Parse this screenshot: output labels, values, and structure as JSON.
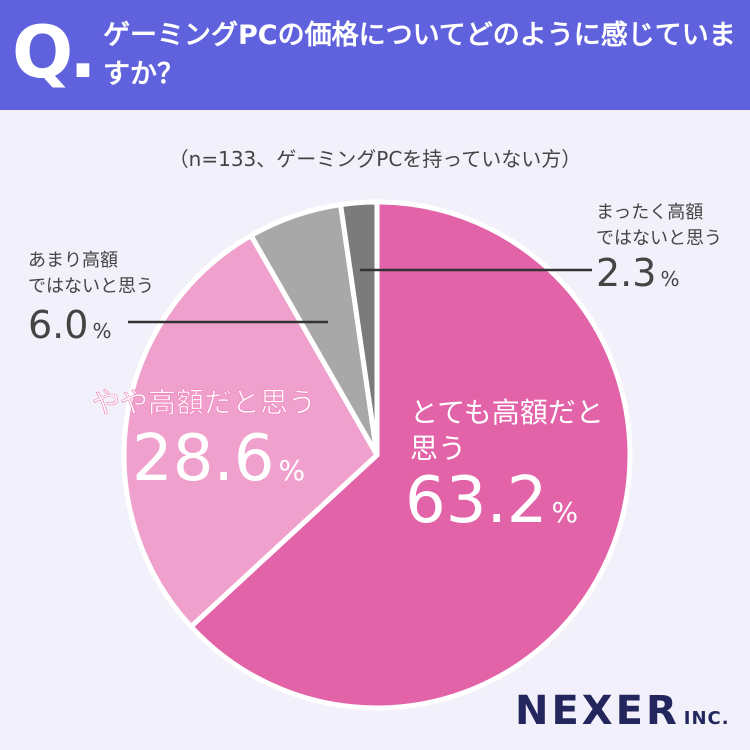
{
  "header": {
    "q_mark": "Q.",
    "question": "ゲーミングPCの価格についてどのように感じていますか？"
  },
  "chart_data": {
    "type": "pie",
    "subtitle": "（n=133、ゲーミングPCを持っていない方）",
    "start_angle_deg": 0,
    "direction": "clockwise",
    "unit": "%",
    "slices": [
      {
        "label_lines": [
          "とても高額だと",
          "思う"
        ],
        "value": 63.2,
        "value_text": "63.2",
        "color": "#e363a9",
        "label_color": "#ffffff"
      },
      {
        "label_lines": [
          "やや高額だと思う"
        ],
        "value": 28.6,
        "value_text": "28.6",
        "color": "#f0a0cc",
        "label_color": "#ffffff"
      },
      {
        "label_lines": [
          "あまり高額",
          "ではないと思う"
        ],
        "value": 6.0,
        "value_text": "6.0",
        "color": "#a8a8a8",
        "label_color": "#444444"
      },
      {
        "label_lines": [
          "まったく高額",
          "ではないと思う"
        ],
        "value": 2.3,
        "value_text": "2.3",
        "color": "#7b7b7b",
        "label_color": "#444444"
      }
    ]
  },
  "logo": {
    "main": "NEXER",
    "sub": "INC."
  }
}
